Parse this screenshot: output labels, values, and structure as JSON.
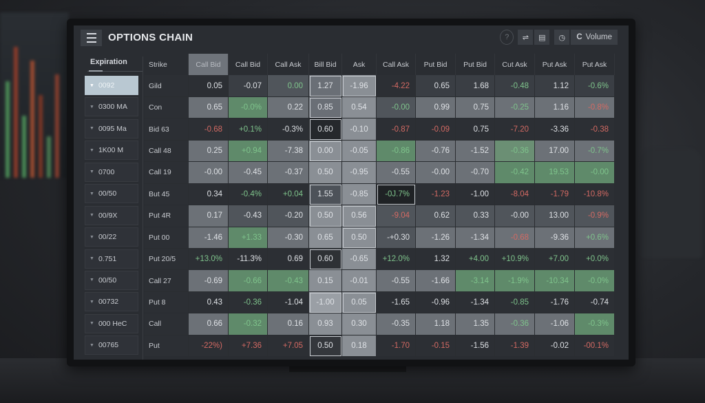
{
  "app": {
    "title": "OPTIONS CHAIN",
    "toolbar": {
      "help_icon": "?",
      "filter_icon": "⇌",
      "layout_icon": "▤",
      "clock_icon": "◷",
      "refresh_icon": "C",
      "volume_label": "Volume"
    }
  },
  "expiration": {
    "header": "Expiration",
    "items": [
      {
        "label": "0092",
        "selected": true
      },
      {
        "label": "0300 MA",
        "selected": false
      },
      {
        "label": "0095 Ma",
        "selected": false
      },
      {
        "label": "1K00 M",
        "selected": false
      },
      {
        "label": "0700",
        "selected": false
      },
      {
        "label": "00/50",
        "selected": false
      },
      {
        "label": "00/9X",
        "selected": false
      },
      {
        "label": "00/22",
        "selected": false
      },
      {
        "label": "0.751",
        "selected": false
      },
      {
        "label": "00/50",
        "selected": false
      },
      {
        "label": "00732",
        "selected": false
      },
      {
        "label": "000 HeC",
        "selected": false
      },
      {
        "label": "00765",
        "selected": false
      }
    ]
  },
  "table": {
    "columns": [
      "Strike",
      "Call Bid",
      "Call Bid",
      "Call Ask",
      "Bill Bid",
      "Ask",
      "Call Ask",
      "Put Bid",
      "Put Bid",
      "Cut Ask",
      "Put Ask",
      "Put Ask"
    ],
    "rows": [
      {
        "strike": "Gild",
        "values": [
          "0.05",
          "-0.07",
          "0.00",
          "1.27",
          "-1.96",
          "-4.22",
          "0.65",
          "1.68",
          "-0.48",
          "1.12",
          "-0.6%"
        ]
      },
      {
        "strike": "Con",
        "values": [
          "0.65",
          "-0.0%",
          "0.22",
          "0.85",
          "0.54",
          "-0.00",
          "0.99",
          "0.75",
          "-0.25",
          "1.16",
          "-0.8%"
        ]
      },
      {
        "strike": "Bid 63",
        "values": [
          "-0.68",
          "+0.1%",
          "-0.3%",
          "0.60",
          "-0.10",
          "-0.87",
          "-0.09",
          "0.75",
          "-7.20",
          "-3.36",
          "-0.38"
        ]
      },
      {
        "strike": "Call 48",
        "values": [
          "0.25",
          "+0.94",
          "-7.38",
          "0.00",
          "-0.05",
          "-0.86",
          "-0.76",
          "-1.52",
          "-0.36",
          "17.00",
          "-0.7%"
        ]
      },
      {
        "strike": "Call 19",
        "values": [
          "-0.00",
          "-0.45",
          "-0.37",
          "0.50",
          "-0.95",
          "-0.55",
          "-0.00",
          "-0.70",
          "-0.42",
          "19.53",
          "-0.00"
        ]
      },
      {
        "strike": "But 45",
        "values": [
          "0.34",
          "-0.4%",
          "+0.04",
          "1.55",
          "-0.85",
          "-0J.7%",
          "-1.23",
          "-1.00",
          "-8.04",
          "-1.79",
          "-10.8%"
        ]
      },
      {
        "strike": "Put 4R",
        "values": [
          "0.17",
          "-0.43",
          "-0.20",
          "0.50",
          "0.56",
          "-9.04",
          "0.62",
          "0.33",
          "-0.00",
          "13.00",
          "-0.9%"
        ]
      },
      {
        "strike": "Put 00",
        "values": [
          "-1.46",
          "+1.33",
          "-0.30",
          "0.65",
          "0.50",
          "-+0.30",
          "-1.26",
          "-1.34",
          "-0.68",
          "-9.36",
          "+0.6%"
        ]
      },
      {
        "strike": "Put 20/5",
        "values": [
          "+13.0%",
          "-11.3%",
          "0.69",
          "0.60",
          "-0.65",
          "+12.0%",
          "1.32",
          "+4.00",
          "+10.9%",
          "+7.00",
          "+0.0%"
        ]
      },
      {
        "strike": "Call 27",
        "values": [
          "-0.69",
          "-0.66",
          "-0.43",
          "0.15",
          "-0.01",
          "-0.55",
          "-1.66",
          "-3.14",
          "-1.9%",
          "-10.34",
          "-0.0%"
        ]
      },
      {
        "strike": "Put 8",
        "values": [
          "0.43",
          "-0.36",
          "-1.04",
          "-1.00",
          "0.05",
          "-1.65",
          "-0.96",
          "-1.34",
          "-0.85",
          "-1.76",
          "-0.74"
        ]
      },
      {
        "strike": "Call",
        "values": [
          "0.66",
          "-0.32",
          "0.16",
          "0.93",
          "0.30",
          "-0.35",
          "1.18",
          "1.35",
          "-0.36",
          "-1.06",
          "-0.3%"
        ]
      },
      {
        "strike": "Put",
        "values": [
          "-22%)",
          "+7.36",
          "+7.05",
          "0.50",
          "0.18",
          "-1.70",
          "-0.15",
          "-1.56",
          "-1.39",
          "-0.02",
          "-00.1%"
        ]
      }
    ]
  },
  "colors": {
    "positive": "#7fc48c",
    "negative": "#d46a63",
    "selected_expiration": "#b9c8d2",
    "green_cell": "#5f8a6a"
  }
}
